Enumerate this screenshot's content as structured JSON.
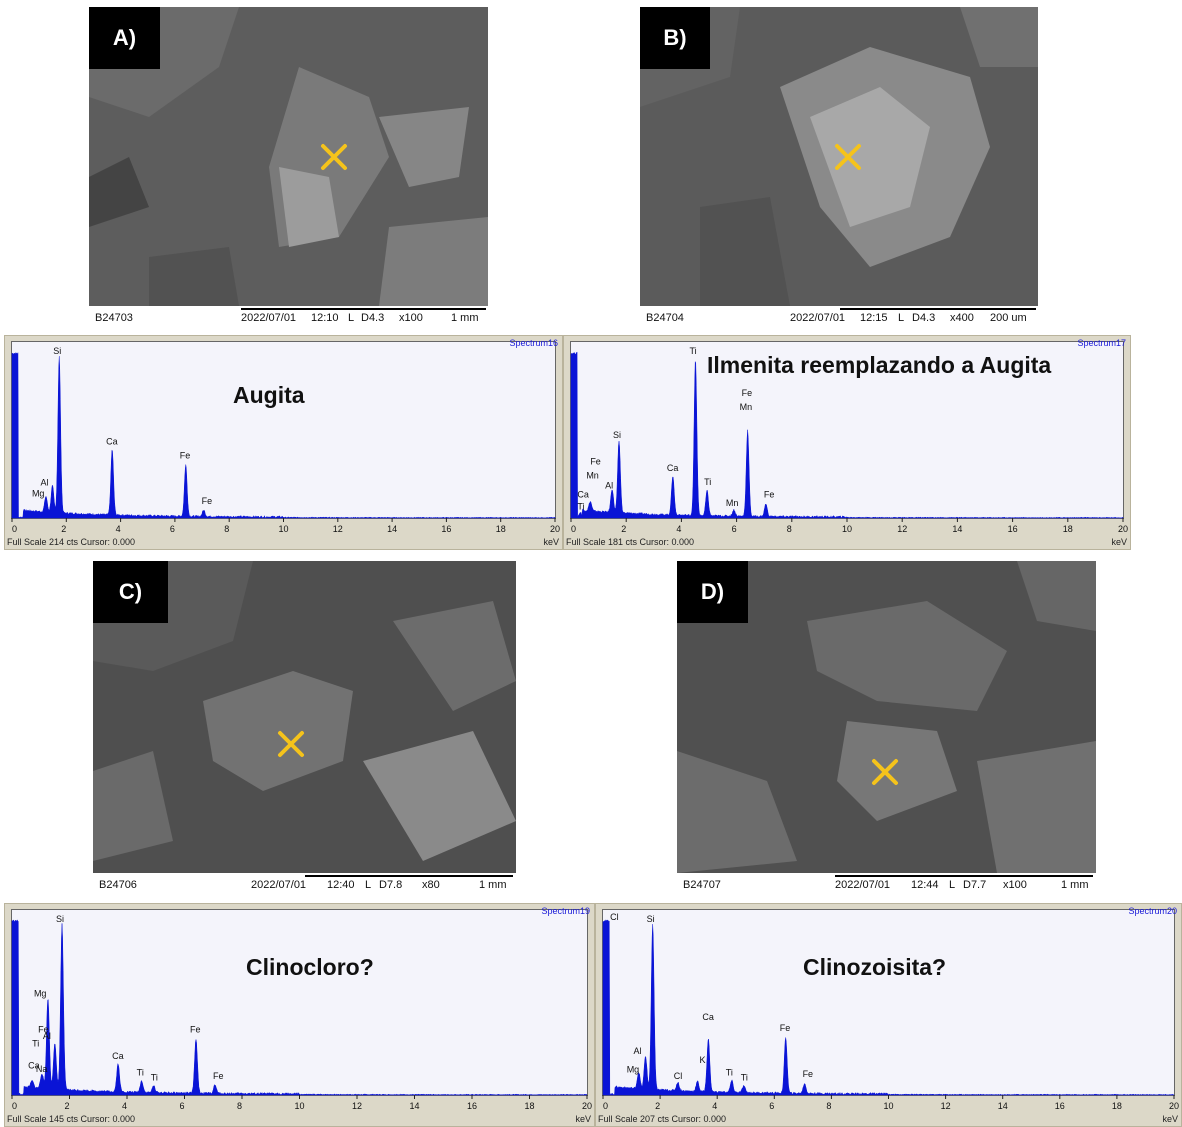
{
  "panels": [
    {
      "label": "A)",
      "sample_id": "B24703",
      "date": "2022/07/01",
      "time": "12:10",
      "mode": "L",
      "wd": "D4.3",
      "mag": "x100",
      "scale": "1 mm",
      "spectrum": "Spectrum16",
      "mineral": "Augita",
      "full_scale": "Full Scale 214 cts Cursor: 0.000",
      "unit": "keV",
      "ticks": [
        "0",
        "2",
        "4",
        "6",
        "8",
        "10",
        "12",
        "14",
        "16",
        "18",
        "20"
      ],
      "elements": [
        "Mg",
        "Al",
        "Si",
        "Ca",
        "Fe",
        "Fe"
      ]
    },
    {
      "label": "B)",
      "sample_id": "B24704",
      "date": "2022/07/01",
      "time": "12:15",
      "mode": "L",
      "wd": "D4.3",
      "mag": "x400",
      "scale": "200 um",
      "spectrum": "Spectrum17",
      "mineral": "Ilmenita reemplazando a Augita",
      "full_scale": "Full Scale 181 cts Cursor: 0.000",
      "unit": "keV",
      "ticks": [
        "0",
        "2",
        "4",
        "6",
        "8",
        "10",
        "12",
        "14",
        "16",
        "18",
        "20"
      ],
      "elements": [
        "Fe",
        "Mn",
        "Ca",
        "Ti",
        "Al",
        "Si",
        "Ca",
        "Ti",
        "Ti",
        "Mn",
        "Fe",
        "Mn",
        "Fe"
      ]
    },
    {
      "label": "C)",
      "sample_id": "B24706",
      "date": "2022/07/01",
      "time": "12:40",
      "mode": "L",
      "wd": "D7.8",
      "mag": "x80",
      "scale": "1 mm",
      "spectrum": "Spectrum19",
      "mineral": "Clinocloro?",
      "full_scale": "Full Scale 145 cts Cursor: 0.000",
      "unit": "keV",
      "ticks": [
        "0",
        "2",
        "4",
        "6",
        "8",
        "10",
        "12",
        "14",
        "16",
        "18",
        "20"
      ],
      "elements": [
        "Fe",
        "Ti",
        "Ca",
        "Na",
        "Mg",
        "Al",
        "Si",
        "Ca",
        "Ti",
        "Ti",
        "Fe",
        "Fe"
      ]
    },
    {
      "label": "D)",
      "sample_id": "B24707",
      "date": "2022/07/01",
      "time": "12:44",
      "mode": "L",
      "wd": "D7.7",
      "mag": "x100",
      "scale": "1 mm",
      "spectrum": "Spectrum20",
      "mineral": "Clinozoisita?",
      "full_scale": "Full Scale 207 cts Cursor: 0.000",
      "unit": "keV",
      "ticks": [
        "0",
        "2",
        "4",
        "6",
        "8",
        "10",
        "12",
        "14",
        "16",
        "18",
        "20"
      ],
      "elements": [
        "Cl",
        "Mg",
        "Al",
        "Si",
        "Cl",
        "Ca",
        "K",
        "Ti",
        "Ti",
        "Fe",
        "Fe"
      ]
    }
  ],
  "chart_data": [
    {
      "type": "line",
      "title": "Spectrum16",
      "xlabel": "keV",
      "xlim": [
        0,
        20
      ],
      "peaks": [
        {
          "element": "Mg",
          "x": 1.25,
          "y": 0.1
        },
        {
          "element": "Al",
          "x": 1.49,
          "y": 0.17
        },
        {
          "element": "Si",
          "x": 1.74,
          "y": 1.0
        },
        {
          "element": "Ca",
          "x": 3.69,
          "y": 0.42
        },
        {
          "element": "Fe",
          "x": 6.4,
          "y": 0.33
        },
        {
          "element": "Fe",
          "x": 7.06,
          "y": 0.04
        }
      ]
    },
    {
      "type": "line",
      "title": "Spectrum17",
      "xlabel": "keV",
      "xlim": [
        0,
        20
      ],
      "peaks": [
        {
          "element": "Fe",
          "x": 0.7,
          "y": 0.06
        },
        {
          "element": "Ca",
          "x": 0.34,
          "y": 0.03
        },
        {
          "element": "Al",
          "x": 1.49,
          "y": 0.15
        },
        {
          "element": "Si",
          "x": 1.74,
          "y": 0.46
        },
        {
          "element": "Ca",
          "x": 3.69,
          "y": 0.25
        },
        {
          "element": "Ti",
          "x": 4.51,
          "y": 1.0
        },
        {
          "element": "Ti",
          "x": 4.93,
          "y": 0.16
        },
        {
          "element": "Mn",
          "x": 5.9,
          "y": 0.04
        },
        {
          "element": "Fe",
          "x": 6.4,
          "y": 0.55
        },
        {
          "element": "Fe",
          "x": 7.06,
          "y": 0.08
        }
      ]
    },
    {
      "type": "line",
      "title": "Spectrum19",
      "xlabel": "keV",
      "xlim": [
        0,
        20
      ],
      "peaks": [
        {
          "element": "Fe",
          "x": 0.7,
          "y": 0.04
        },
        {
          "element": "Na",
          "x": 1.04,
          "y": 0.09
        },
        {
          "element": "Mg",
          "x": 1.25,
          "y": 0.55
        },
        {
          "element": "Al",
          "x": 1.49,
          "y": 0.28
        },
        {
          "element": "Si",
          "x": 1.74,
          "y": 1.0
        },
        {
          "element": "Ca",
          "x": 3.69,
          "y": 0.17
        },
        {
          "element": "Ti",
          "x": 4.51,
          "y": 0.07
        },
        {
          "element": "Ti",
          "x": 4.93,
          "y": 0.04
        },
        {
          "element": "Fe",
          "x": 6.4,
          "y": 0.33
        },
        {
          "element": "Fe",
          "x": 7.06,
          "y": 0.05
        }
      ]
    },
    {
      "type": "line",
      "title": "Spectrum20",
      "xlabel": "keV",
      "xlim": [
        0,
        20
      ],
      "peaks": [
        {
          "element": "Mg",
          "x": 1.25,
          "y": 0.1
        },
        {
          "element": "Al",
          "x": 1.49,
          "y": 0.2
        },
        {
          "element": "Si",
          "x": 1.74,
          "y": 1.0
        },
        {
          "element": "Cl",
          "x": 2.62,
          "y": 0.05
        },
        {
          "element": "K",
          "x": 3.31,
          "y": 0.06
        },
        {
          "element": "Ca",
          "x": 3.69,
          "y": 0.32
        },
        {
          "element": "Ti",
          "x": 4.51,
          "y": 0.07
        },
        {
          "element": "Ti",
          "x": 4.93,
          "y": 0.04
        },
        {
          "element": "Fe",
          "x": 6.4,
          "y": 0.34
        },
        {
          "element": "Fe",
          "x": 7.06,
          "y": 0.06
        }
      ]
    }
  ],
  "colors": {
    "spectrum": "#0a14d6",
    "marker": "#f5c31b",
    "plot_bg": "#f4f4fb",
    "frame": "#dcd8c8",
    "spectrum_name": "#1a1ad8"
  }
}
